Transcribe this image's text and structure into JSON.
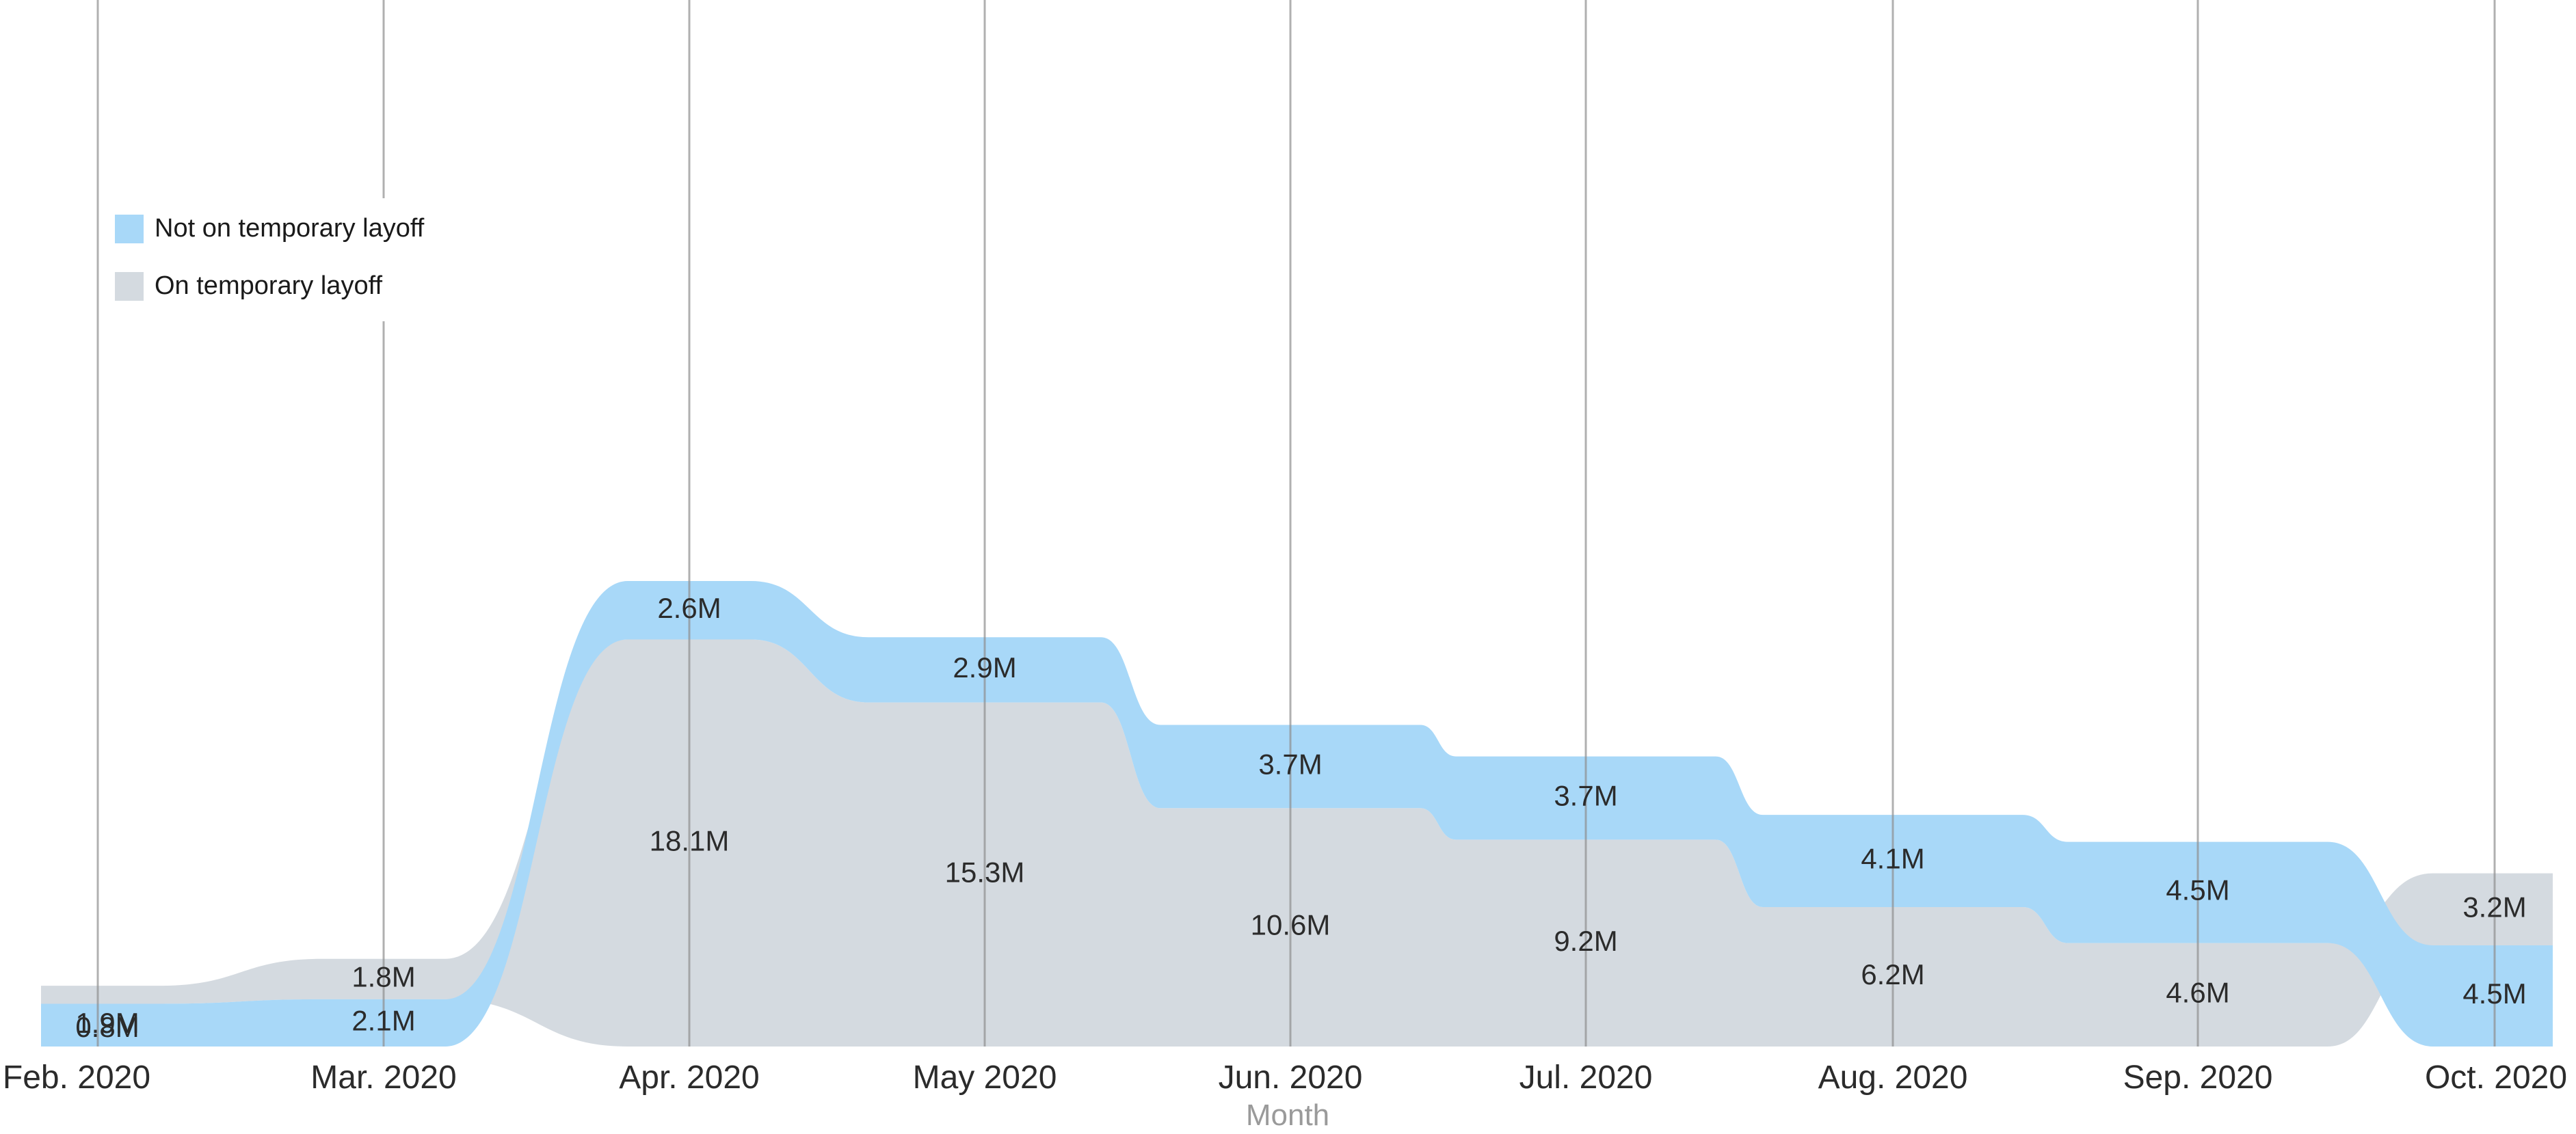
{
  "chart_data": {
    "type": "area",
    "x_axis_title": "Month",
    "categories": [
      "Feb. 2020",
      "Mar. 2020",
      "Apr. 2020",
      "May 2020",
      "Jun. 2020",
      "Jul. 2020",
      "Aug. 2020",
      "Sep. 2020",
      "Oct. 2020"
    ],
    "series": [
      {
        "name": "Not on temporary layoff",
        "color": "#a8d8f8",
        "values": [
          1.9,
          2.1,
          2.6,
          2.9,
          3.7,
          3.7,
          4.1,
          4.5,
          4.5
        ],
        "labels": [
          "1.9M",
          "2.1M",
          "2.6M",
          "2.9M",
          "3.7M",
          "3.7M",
          "4.1M",
          "4.5M",
          "4.5M"
        ]
      },
      {
        "name": "On temporary layoff",
        "color": "#d4dae0",
        "values": [
          0.8,
          1.8,
          18.1,
          15.3,
          10.6,
          9.2,
          6.2,
          4.6,
          3.2
        ],
        "labels": [
          "0.8M",
          "1.8M",
          "18.1M",
          "15.3M",
          "10.6M",
          "9.2M",
          "6.2M",
          "4.6M",
          "3.2M"
        ]
      }
    ],
    "stack_order_note": "the larger series is drawn at the bottom of each month",
    "legend": {
      "position": "top-left",
      "items": [
        "Not on temporary layoff",
        "On temporary layoff"
      ]
    },
    "grid": "vertical lines at each month"
  }
}
